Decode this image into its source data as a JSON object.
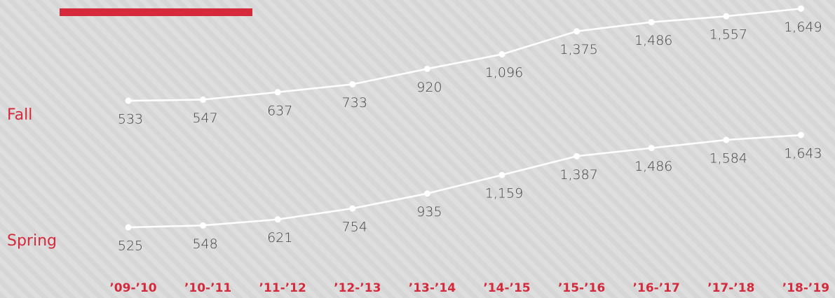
{
  "chart_data": {
    "type": "line",
    "categories": [
      "’09-’10",
      "’10-’11",
      "’11-’12",
      "’12-’13",
      "’13-’14",
      "’14-’15",
      "’15-’16",
      "’16-’17",
      "’17-’18",
      "’18-’19"
    ],
    "series": [
      {
        "name": "Fall",
        "color": "#ffffff",
        "values": [
          533,
          547,
          637,
          733,
          920,
          1096,
          1375,
          1486,
          1557,
          1649
        ],
        "value_labels": [
          "533",
          "547",
          "637",
          "733",
          "920",
          "1,096",
          "1,375",
          "1,486",
          "1,557",
          "1,649"
        ]
      },
      {
        "name": "Spring",
        "color": "#ffffff",
        "values": [
          525,
          548,
          621,
          754,
          935,
          1159,
          1387,
          1486,
          1584,
          1643
        ],
        "value_labels": [
          "525",
          "548",
          "621",
          "754",
          "935",
          "1,159",
          "1,387",
          "1,486",
          "1,584",
          "1,643"
        ]
      }
    ]
  }
}
